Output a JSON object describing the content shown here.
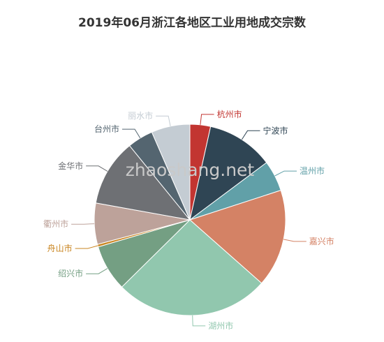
{
  "watermark": "zhaoshang.net",
  "chart_data": {
    "type": "pie",
    "title": "2019年06月浙江各地区工业用地成交宗数",
    "slices": [
      {
        "name": "杭州市",
        "value": 4,
        "color": "#c23531"
      },
      {
        "name": "宁波市",
        "value": 13,
        "color": "#2f4554"
      },
      {
        "name": "温州市",
        "value": 6,
        "color": "#61a0a8"
      },
      {
        "name": "嘉兴市",
        "value": 19,
        "color": "#d48265"
      },
      {
        "name": "湖州市",
        "value": 30,
        "color": "#91c7ae"
      },
      {
        "name": "绍兴市",
        "value": 9,
        "color": "#749f83"
      },
      {
        "name": "舟山市",
        "value": 0.5,
        "color": "#ca8622"
      },
      {
        "name": "衢州市",
        "value": 8,
        "color": "#bda29a"
      },
      {
        "name": "金华市",
        "value": 13,
        "color": "#6e7074"
      },
      {
        "name": "台州市",
        "value": 5,
        "color": "#546570"
      },
      {
        "name": "丽水市",
        "value": 7.5,
        "color": "#c4ccd3"
      }
    ]
  }
}
